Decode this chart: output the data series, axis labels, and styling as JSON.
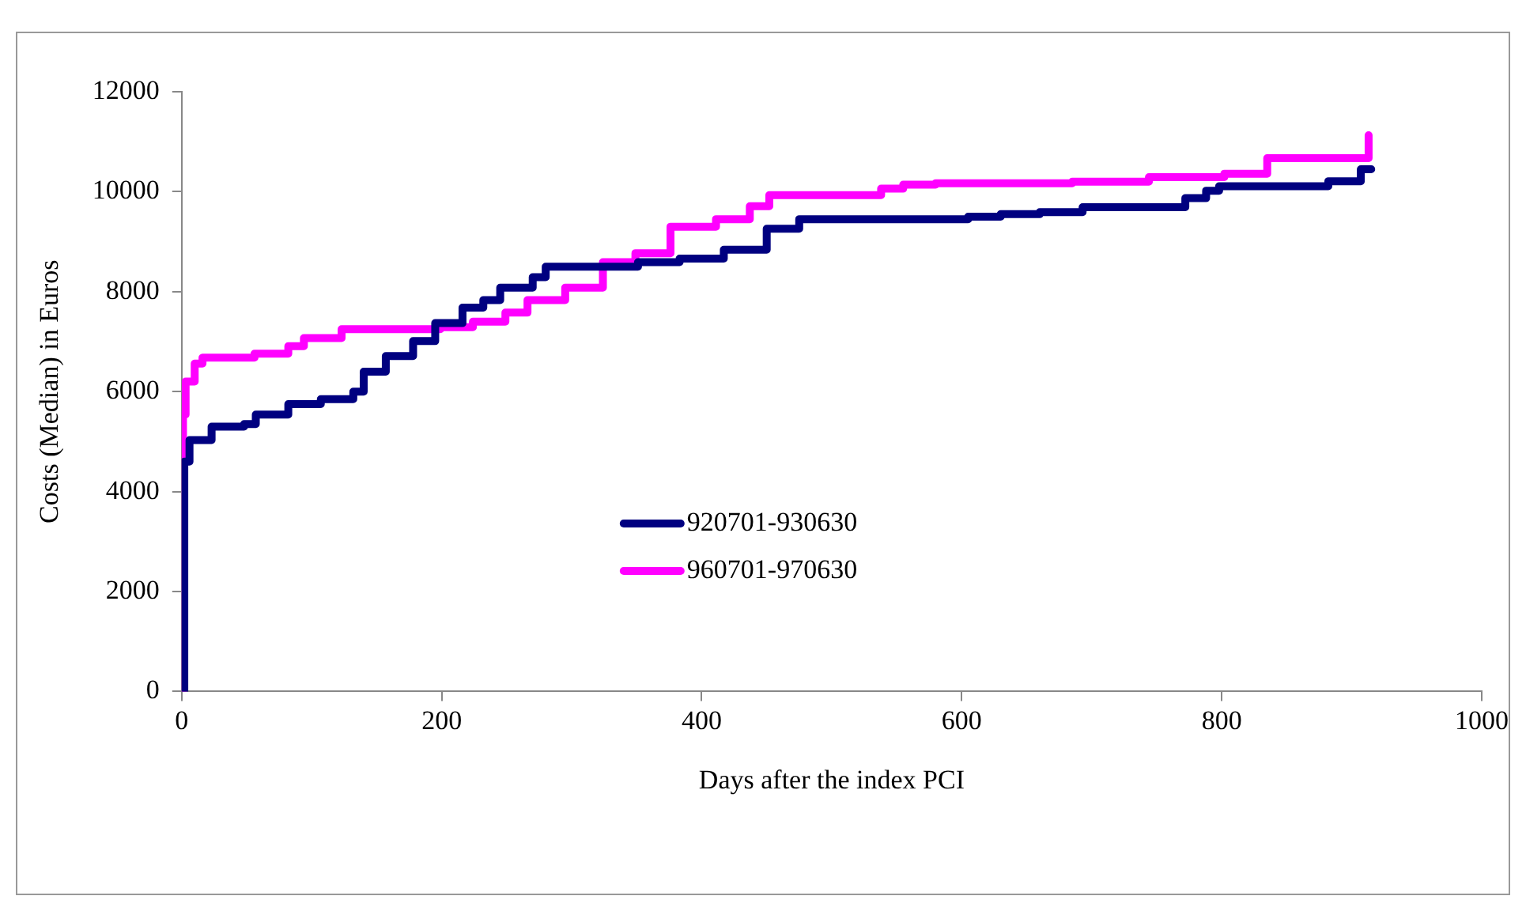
{
  "chart_data": {
    "type": "step",
    "xlabel": "Days after the index PCI",
    "ylabel": "Costs (Median) in Euros",
    "xlim": [
      0,
      1000
    ],
    "xticks": [
      0,
      200,
      400,
      600,
      800,
      1000
    ],
    "ylim": [
      0,
      12000
    ],
    "yticks": [
      0,
      2000,
      4000,
      6000,
      8000,
      10000,
      12000
    ],
    "grid": false,
    "legend": "center",
    "marker": "none",
    "line_style": "solid",
    "series": [
      {
        "name": "920701-930630",
        "color": "#000080",
        "x": [
          0,
          2,
          6,
          23,
          48,
          57,
          82,
          107,
          132,
          140,
          157,
          178,
          195,
          216,
          232,
          245,
          270,
          280,
          351,
          383,
          417,
          450,
          475,
          605,
          630,
          660,
          693,
          772,
          788,
          798,
          882,
          907,
          915
        ],
        "values": [
          0,
          4600,
          5030,
          5300,
          5350,
          5540,
          5750,
          5850,
          6000,
          6400,
          6710,
          7010,
          7370,
          7680,
          7830,
          8080,
          8290,
          8500,
          8590,
          8660,
          8840,
          9260,
          9450,
          9500,
          9550,
          9590,
          9690,
          9870,
          10020,
          10110,
          10210,
          10450,
          10450
        ]
      },
      {
        "name": "960701-970630",
        "color": "#ff00ff",
        "x": [
          0,
          1,
          3,
          10,
          16,
          56,
          82,
          94,
          123,
          199,
          224,
          249,
          266,
          295,
          324,
          349,
          376,
          411,
          437,
          452,
          538,
          555,
          580,
          685,
          744,
          802,
          835,
          913,
          913
        ],
        "values": [
          0,
          5540,
          6200,
          6560,
          6680,
          6760,
          6910,
          7070,
          7250,
          7290,
          7400,
          7580,
          7830,
          8080,
          8590,
          8770,
          9300,
          9450,
          9710,
          9930,
          10060,
          10140,
          10170,
          10200,
          10290,
          10360,
          10670,
          10670,
          11130
        ]
      }
    ]
  }
}
